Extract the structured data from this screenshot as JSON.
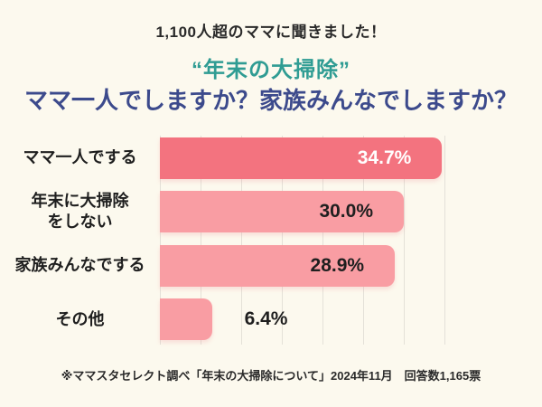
{
  "page": {
    "background": "#FCF9EE"
  },
  "header": {
    "eyebrow": "1,100人超のママに聞きました！",
    "title": "“年末の大掃除”",
    "subtitle": "ママ一人でしますか？家族みんなでしますか？",
    "title_color": "#2F9C93",
    "subtitle_color": "#3C4A8C"
  },
  "chart_data": {
    "type": "bar",
    "orientation": "horizontal",
    "title": "“年末の大掃除” ママ一人でしますか？家族みんなでしますか？",
    "categories": [
      "ママ一人でする",
      "年末に大掃除\nをしない",
      "家族みんなでする",
      "その他"
    ],
    "values": [
      34.7,
      30.0,
      28.9,
      6.4
    ],
    "value_labels": [
      "34.7%",
      "30.0%",
      "28.9%",
      "6.4%"
    ],
    "xlim": [
      0,
      35
    ],
    "gridline_interval": 5,
    "grid": true,
    "bar_colors": [
      "#F3737F",
      "#F99DA3",
      "#F99DA3",
      "#F99DA3"
    ],
    "value_label_colors": [
      "#FFFFFF",
      "#1F1F1F",
      "#1F1F1F",
      "#1F1F1F"
    ],
    "gridline_color": "#E4E1D8"
  },
  "footer": {
    "source": "※ママスタセレクト調べ「年末の大掃除について」2024年11月　回答数1,165票"
  }
}
